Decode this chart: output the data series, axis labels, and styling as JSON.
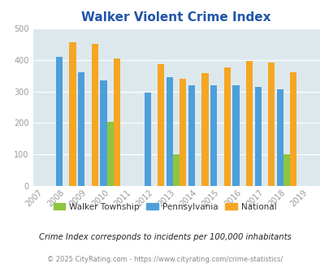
{
  "title": "Walker Violent Crime Index",
  "years": [
    2007,
    2008,
    2009,
    2010,
    2011,
    2012,
    2013,
    2014,
    2015,
    2016,
    2017,
    2018,
    2019
  ],
  "bar_years": [
    2008,
    2009,
    2010,
    2012,
    2013,
    2014,
    2015,
    2016,
    2017,
    2018
  ],
  "walker": [
    0,
    0,
    205,
    0,
    100,
    0,
    0,
    0,
    0,
    102
  ],
  "pennsylvania": [
    410,
    360,
    335,
    295,
    345,
    320,
    320,
    320,
    315,
    307
  ],
  "national": [
    455,
    450,
    405,
    385,
    340,
    357,
    375,
    397,
    390,
    360
  ],
  "walker_color": "#8dc63f",
  "pa_color": "#4d9fdb",
  "nat_color": "#f5a623",
  "bg_color": "#dde8ec",
  "ylim": [
    0,
    500
  ],
  "yticks": [
    0,
    100,
    200,
    300,
    400,
    500
  ],
  "tick_color": "#999999",
  "title_color": "#2255aa",
  "legend_labels": [
    "Walker Township",
    "Pennsylvania",
    "National"
  ],
  "footnote1": "Crime Index corresponds to incidents per 100,000 inhabitants",
  "footnote2": "© 2025 CityRating.com - https://www.cityrating.com/crime-statistics/",
  "bar_width": 0.3
}
